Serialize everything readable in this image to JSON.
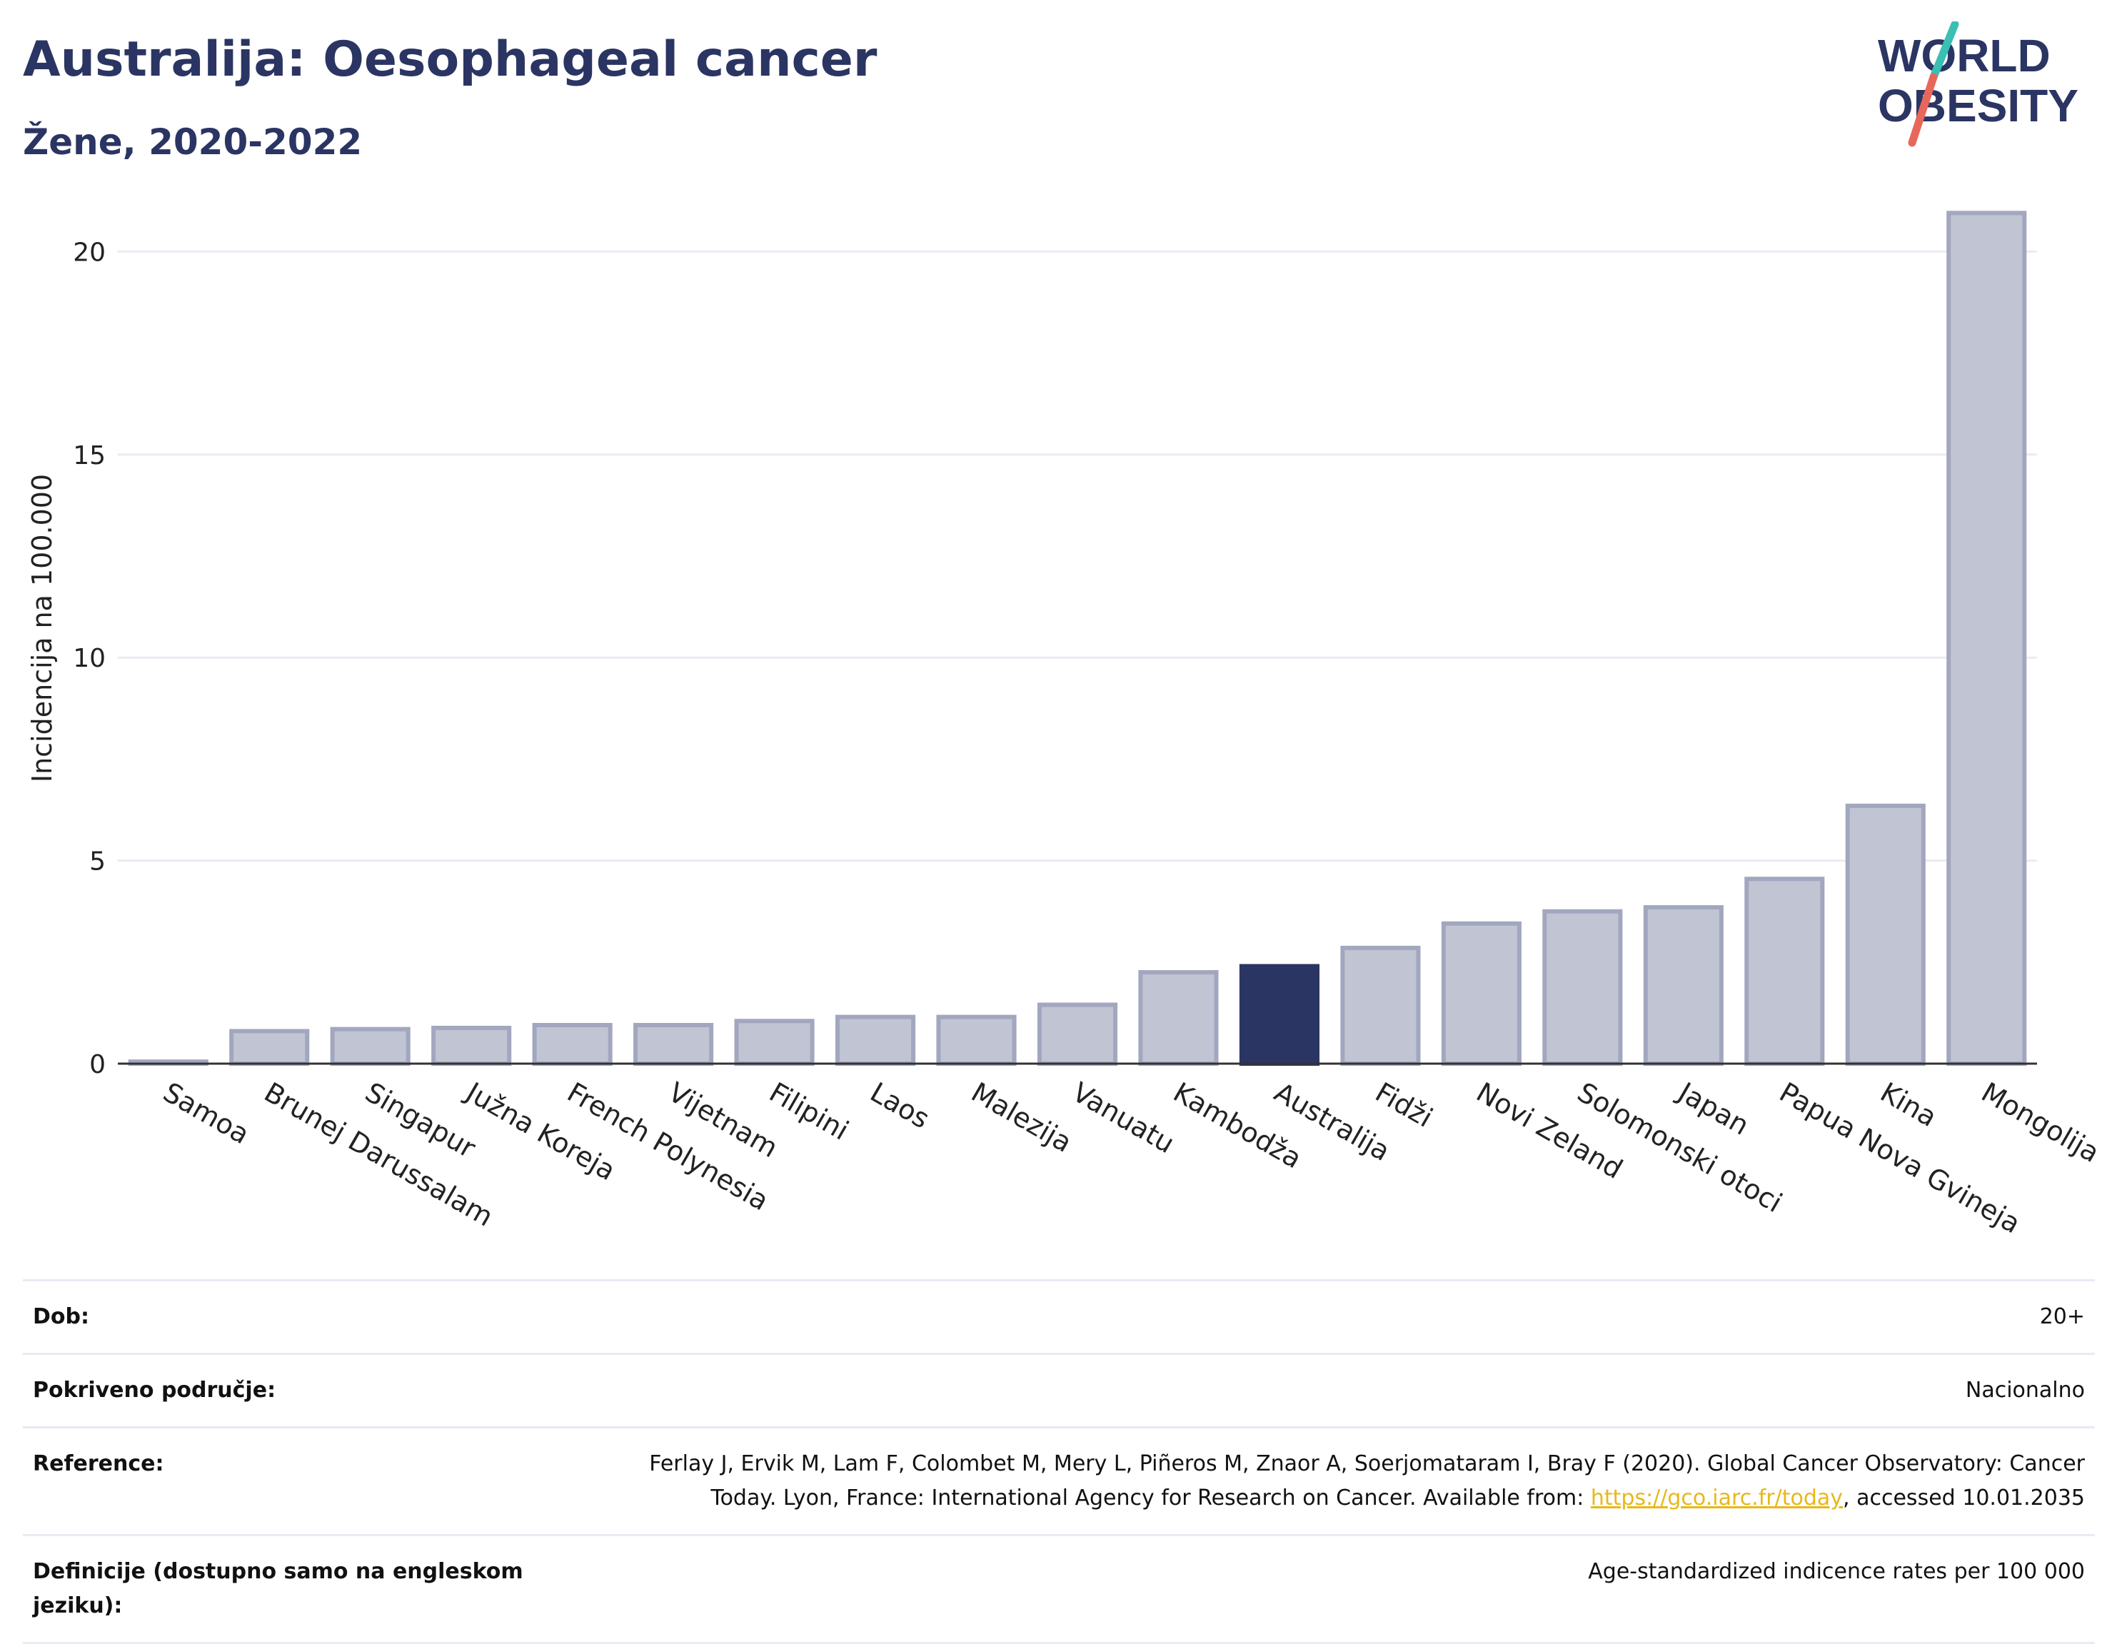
{
  "header": {
    "title": "Australija: Oesophageal cancer",
    "subtitle": "Žene, 2020-2022"
  },
  "logo": {
    "line1": "WORLD",
    "line2": "OBESITY",
    "color": "#2b3563",
    "slash_top_color": "#3bbfb3",
    "slash_bottom_color": "#e8675b"
  },
  "colors": {
    "bar_default": "#c1c4d2",
    "bar_outline": "#a2a7bf",
    "bar_highlight": "#2b3563",
    "grid": "#e8ebf2",
    "axis": "#333333"
  },
  "chart_data": {
    "type": "bar",
    "ylabel": "Incidencija na 100.000",
    "ylim": [
      0,
      21.8
    ],
    "yticks": [
      0,
      5,
      10,
      15,
      20
    ],
    "grid": true,
    "highlight": "Australija",
    "categories": [
      "Samoa",
      "Brunej Darussalam",
      "Singapur",
      "Južna Koreja",
      "French Polynesia",
      "Vijetnam",
      "Filipini",
      "Laos",
      "Malezija",
      "Vanuatu",
      "Kambodža",
      "Australija",
      "Fidži",
      "Novi Zeland",
      "Solomonski otoci",
      "Japan",
      "Papua Nova Gvineja",
      "Kina",
      "Mongolija"
    ],
    "values": [
      0.05,
      0.8,
      0.85,
      0.88,
      0.95,
      0.95,
      1.05,
      1.15,
      1.15,
      1.45,
      2.25,
      2.4,
      2.85,
      3.45,
      3.75,
      3.85,
      4.55,
      6.35,
      20.95
    ]
  },
  "meta": {
    "rows": [
      {
        "key": "Dob:",
        "value": "20+"
      },
      {
        "key": "Pokriveno područje:",
        "value": "Nacionalno"
      },
      {
        "key": "Reference:",
        "value_line1": "Ferlay J, Ervik M, Lam F, Colombet M, Mery L, Piñeros M, Znaor A, Soerjomataram I, Bray F (2020). Global Cancer Observatory: Cancer",
        "value_line2_pre": "Today. Lyon, France: International Agency for Research on Cancer. Available from: ",
        "link": "https://gco.iarc.fr/today",
        "value_line2_post": ", accessed 10.01.2035"
      },
      {
        "key": "Definicije (dostupno samo na engleskom jeziku):",
        "value": "Age-standardized indicence rates per 100 000"
      }
    ]
  }
}
